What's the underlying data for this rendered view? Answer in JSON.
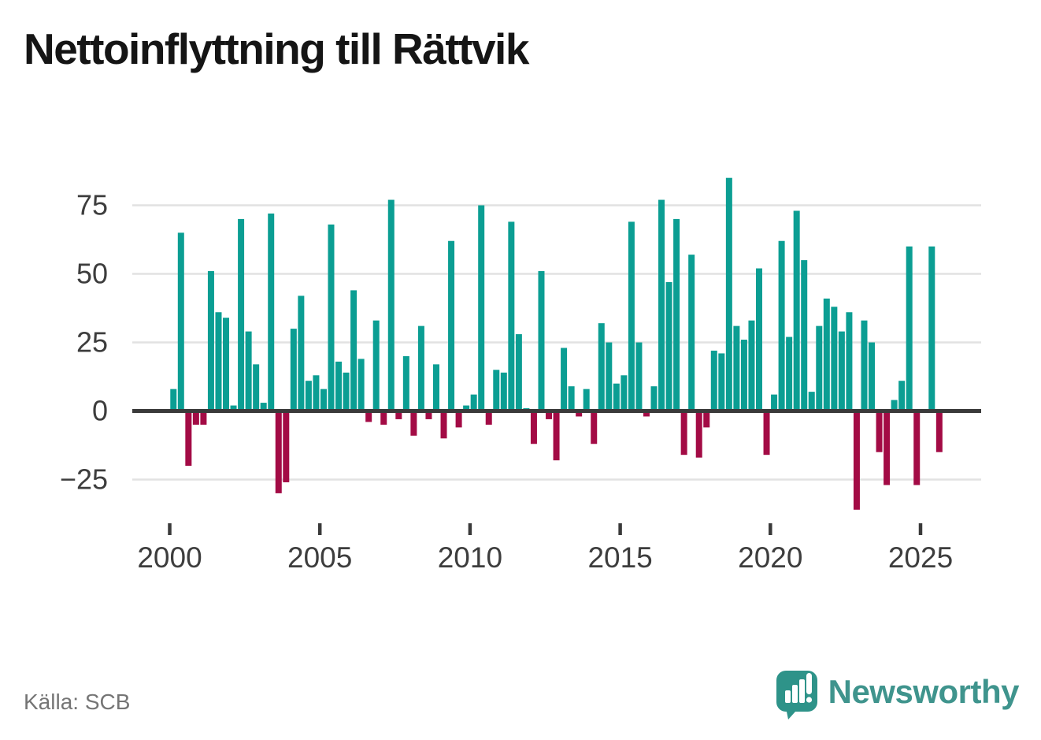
{
  "header": {
    "title": "Nettoinflyttning till Rättvik"
  },
  "footer": {
    "source": "Källa: SCB",
    "brand": "Newsworthy"
  },
  "chart_data": {
    "type": "bar",
    "title": "Nettoinflyttning till Rättvik",
    "frequency": "quarterly",
    "start_year": 2000,
    "start_quarter": 1,
    "end_year": 2025,
    "end_quarter": 3,
    "values": [
      8,
      65,
      -20,
      -5,
      -5,
      51,
      36,
      34,
      2,
      70,
      29,
      17,
      3,
      72,
      -30,
      -26,
      30,
      42,
      11,
      13,
      8,
      68,
      18,
      14,
      44,
      19,
      -4,
      33,
      -5,
      77,
      -3,
      20,
      -9,
      31,
      -3,
      17,
      -10,
      62,
      -6,
      2,
      6,
      75,
      -5,
      15,
      14,
      69,
      28,
      1,
      -12,
      51,
      -3,
      -18,
      23,
      9,
      -2,
      8,
      -12,
      32,
      25,
      10,
      13,
      69,
      25,
      -2,
      9,
      77,
      47,
      70,
      -16,
      57,
      -17,
      -6,
      22,
      21,
      85,
      31,
      26,
      33,
      52,
      -16,
      6,
      62,
      27,
      73,
      55,
      7,
      31,
      41,
      38,
      29,
      36,
      -36,
      33,
      25,
      -15,
      -27,
      4,
      11,
      60,
      -27,
      0,
      60,
      -15
    ],
    "x_tick_years": [
      2000,
      2005,
      2010,
      2015,
      2020,
      2025
    ],
    "x_tick_labels": [
      "2000",
      "2005",
      "2010",
      "2015",
      "2020",
      "2025"
    ],
    "y_ticks": [
      75,
      50,
      25,
      0,
      -25
    ],
    "y_tick_labels": [
      "75",
      "50",
      "25",
      "0",
      "−25"
    ],
    "ylim": [
      -40,
      92
    ],
    "grid": true,
    "legend": "none",
    "colors": {
      "positive": "#0B9E93",
      "negative": "#A30B45",
      "grid": "#e2e2e2",
      "axis": "#3a3a3a",
      "tick_label": "#3d3d3d"
    }
  },
  "logo": {
    "icon": "newsworthy-logo-icon",
    "bubble_color": "#2E9389",
    "mark_color": "#ffffff"
  }
}
